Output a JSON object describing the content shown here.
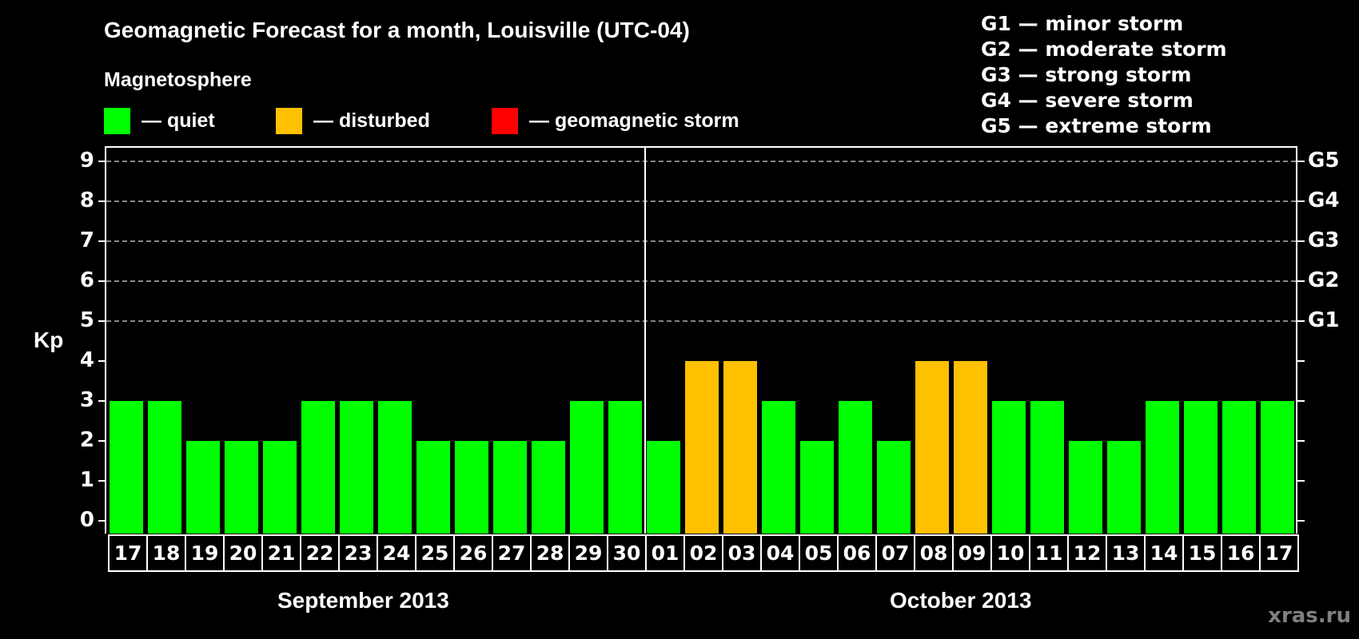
{
  "header": {
    "title": "Geomagnetic Forecast for a month, Louisville (UTC-04)",
    "subtitle": "Magnetosphere"
  },
  "legend": [
    {
      "label": "— quiet",
      "color": "#00ff00"
    },
    {
      "label": "— disturbed",
      "color": "#ffc000"
    },
    {
      "label": "— geomagnetic storm",
      "color": "#ff0000"
    }
  ],
  "storm_scale": [
    "G1 — minor storm",
    "G2 — moderate storm",
    "G3 — strong storm",
    "G4 — severe storm",
    "G5 — extreme storm"
  ],
  "axis": {
    "ylabel": "Kp",
    "yticks": [
      "0",
      "1",
      "2",
      "3",
      "4",
      "5",
      "6",
      "7",
      "8",
      "9"
    ],
    "right_labels": {
      "5": "G1",
      "6": "G2",
      "7": "G3",
      "8": "G4",
      "9": "G5"
    }
  },
  "months": [
    "September 2013",
    "October 2013"
  ],
  "watermark": "xras.ru",
  "chart_data": {
    "type": "bar",
    "title": "Geomagnetic Forecast for a month, Louisville (UTC-04)",
    "xlabel": "",
    "ylabel": "Kp",
    "ylim": [
      0,
      9
    ],
    "grid": "dashed horizontal at Kp 5-9",
    "categories": [
      "17",
      "18",
      "19",
      "20",
      "21",
      "22",
      "23",
      "24",
      "25",
      "26",
      "27",
      "28",
      "29",
      "30",
      "01",
      "02",
      "03",
      "04",
      "05",
      "06",
      "07",
      "08",
      "09",
      "10",
      "11",
      "12",
      "13",
      "14",
      "15",
      "16",
      "17"
    ],
    "month_groups": [
      {
        "label": "September 2013",
        "count": 14
      },
      {
        "label": "October 2013",
        "count": 17
      }
    ],
    "values": [
      3,
      3,
      2,
      2,
      2,
      3,
      3,
      3,
      2,
      2,
      2,
      2,
      3,
      3,
      2,
      4,
      4,
      3,
      2,
      3,
      2,
      4,
      4,
      3,
      3,
      2,
      2,
      3,
      3,
      3,
      3
    ],
    "status": [
      "quiet",
      "quiet",
      "quiet",
      "quiet",
      "quiet",
      "quiet",
      "quiet",
      "quiet",
      "quiet",
      "quiet",
      "quiet",
      "quiet",
      "quiet",
      "quiet",
      "quiet",
      "disturbed",
      "disturbed",
      "quiet",
      "quiet",
      "quiet",
      "quiet",
      "disturbed",
      "disturbed",
      "quiet",
      "quiet",
      "quiet",
      "quiet",
      "quiet",
      "quiet",
      "quiet",
      "quiet"
    ],
    "colors": {
      "quiet": "#00ff00",
      "disturbed": "#ffc000",
      "storm": "#ff0000"
    }
  }
}
